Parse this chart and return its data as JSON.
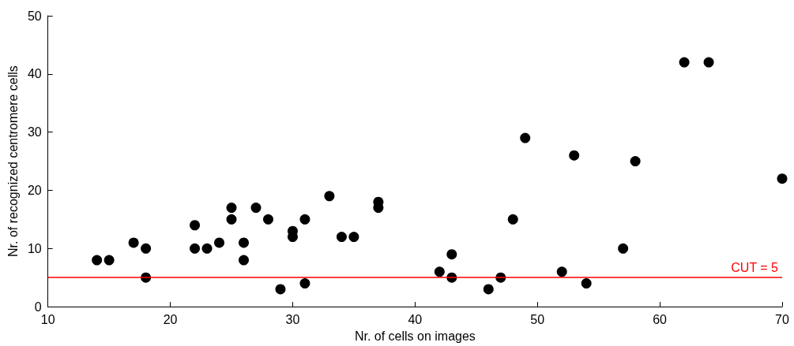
{
  "chart_data": {
    "type": "scatter",
    "xlabel": "Nr. of cells on images",
    "ylabel": "Nr. of recognized centromere cells",
    "xlim": [
      10,
      70
    ],
    "xticks": [
      10,
      20,
      30,
      40,
      50,
      60,
      70
    ],
    "ylim": [
      0,
      50
    ],
    "yticks": [
      0,
      10,
      20,
      30,
      40,
      50
    ],
    "grid": false,
    "marker": "circle",
    "series": [
      {
        "color": "#000000",
        "x": [
          14,
          15,
          17,
          18,
          18,
          22,
          22,
          23,
          24,
          25,
          25,
          26,
          26,
          27,
          28,
          29,
          30,
          30,
          31,
          31,
          33,
          34,
          35,
          37,
          37,
          42,
          43,
          43,
          46,
          47,
          48,
          49,
          52,
          53,
          54,
          57,
          58,
          62,
          64,
          70
        ],
        "values": [
          8,
          8,
          11,
          10,
          5,
          10,
          14,
          10,
          11,
          15,
          17,
          11,
          8,
          17,
          15,
          3,
          13,
          12,
          15,
          4,
          19,
          12,
          12,
          18,
          17,
          6,
          9,
          5,
          3,
          5,
          15,
          29,
          6,
          26,
          4,
          10,
          25,
          42,
          42,
          22
        ]
      }
    ],
    "ref_lines": [
      {
        "axis": "y",
        "value": 5,
        "label": "CUT = 5",
        "color": "#ff0000",
        "line_style": "solid"
      }
    ]
  }
}
